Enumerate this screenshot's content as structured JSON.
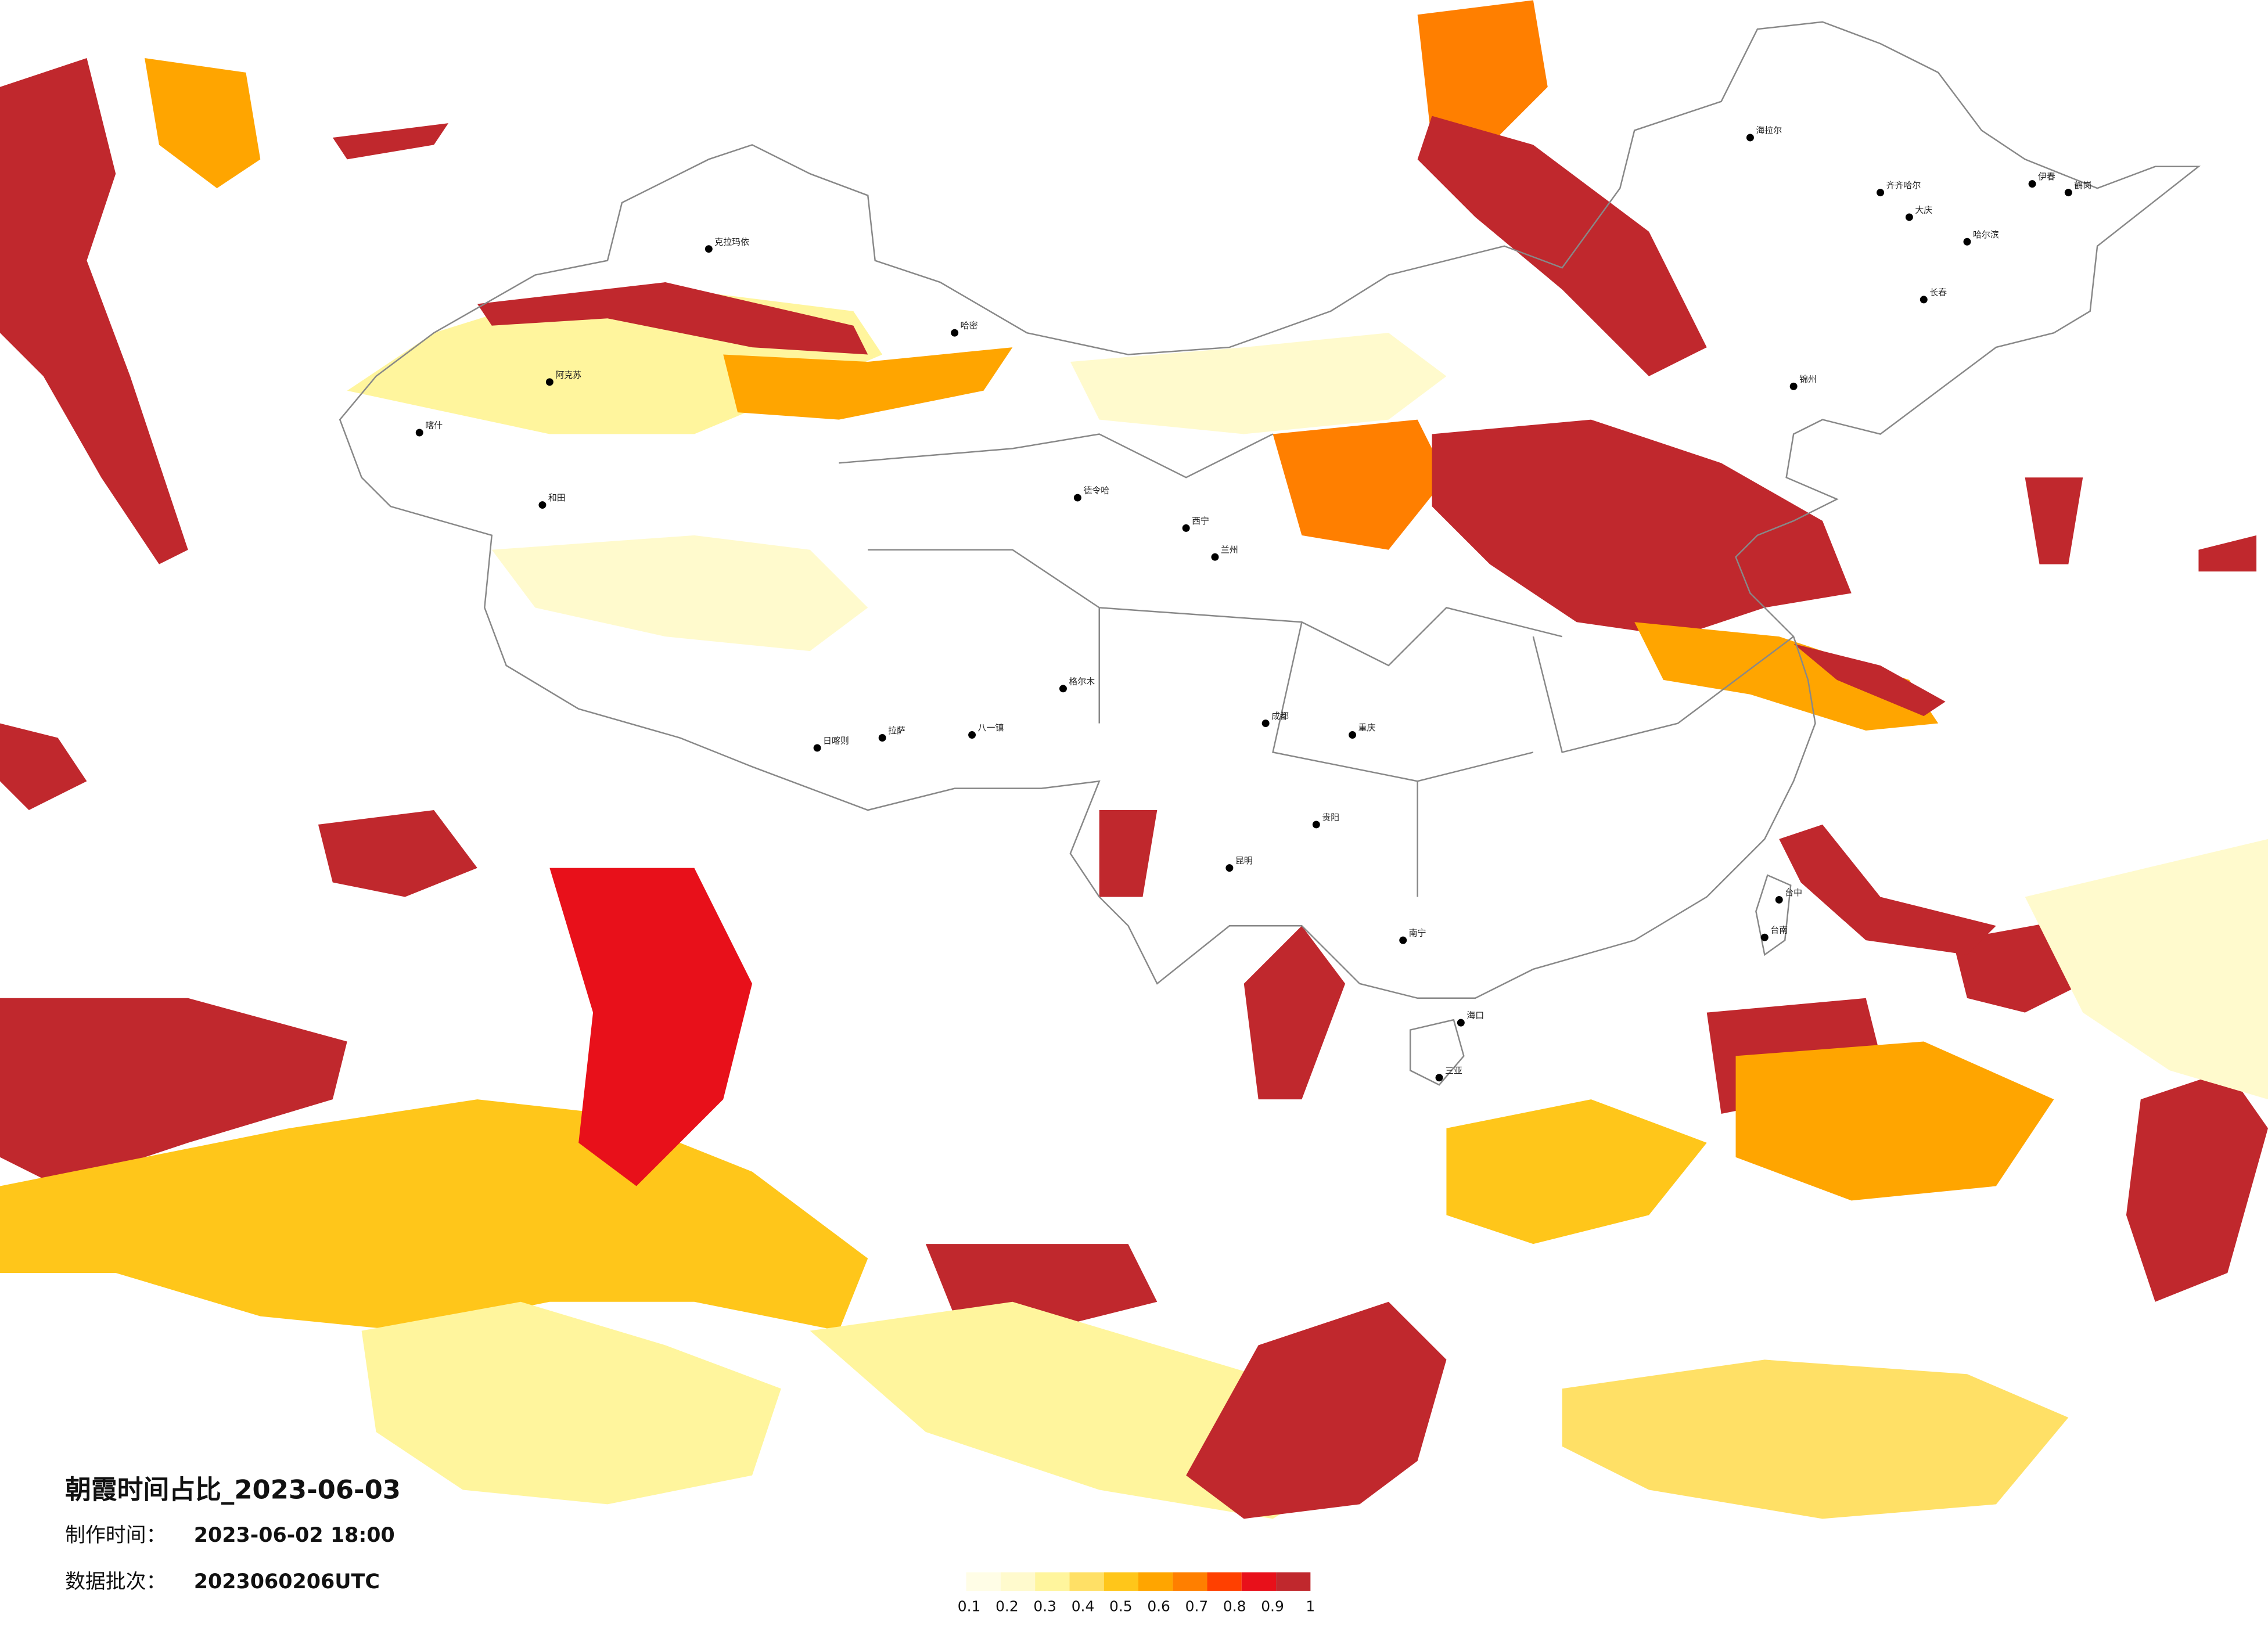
{
  "map": {
    "title": "朝霞时间占比_2023-06-03",
    "make_time": {
      "label": "制作时间：",
      "value": "2023-06-02 18:00"
    },
    "batch": {
      "label": "数据批次：",
      "value": "2023060206UTC"
    },
    "colorbar": {
      "colors": [
        "#fffde6",
        "#fffacd",
        "#fff59d",
        "#ffe066",
        "#ffc61a",
        "#ffa500",
        "#ff7f00",
        "#ff4000",
        "#e8101a",
        "#c0282d"
      ],
      "ticks": [
        0.1,
        0.2,
        0.3,
        0.4,
        0.5,
        0.6,
        0.7,
        0.8,
        0.9,
        1
      ]
    },
    "cities": [
      "喀什",
      "阿克苏",
      "和田",
      "克拉玛依",
      "哈密",
      "德令哈",
      "日喀则",
      "拉萨",
      "西宁",
      "兰州",
      "成都",
      "重庆",
      "昆明",
      "贵阳",
      "南宁",
      "海口",
      "三亚",
      "台中",
      "台南",
      "海拉尔",
      "齐齐哈尔",
      "大庆",
      "哈尔滨",
      "伊春",
      "鹤岗",
      "长春",
      "锦州",
      "八一镇",
      "格尔木"
    ]
  }
}
